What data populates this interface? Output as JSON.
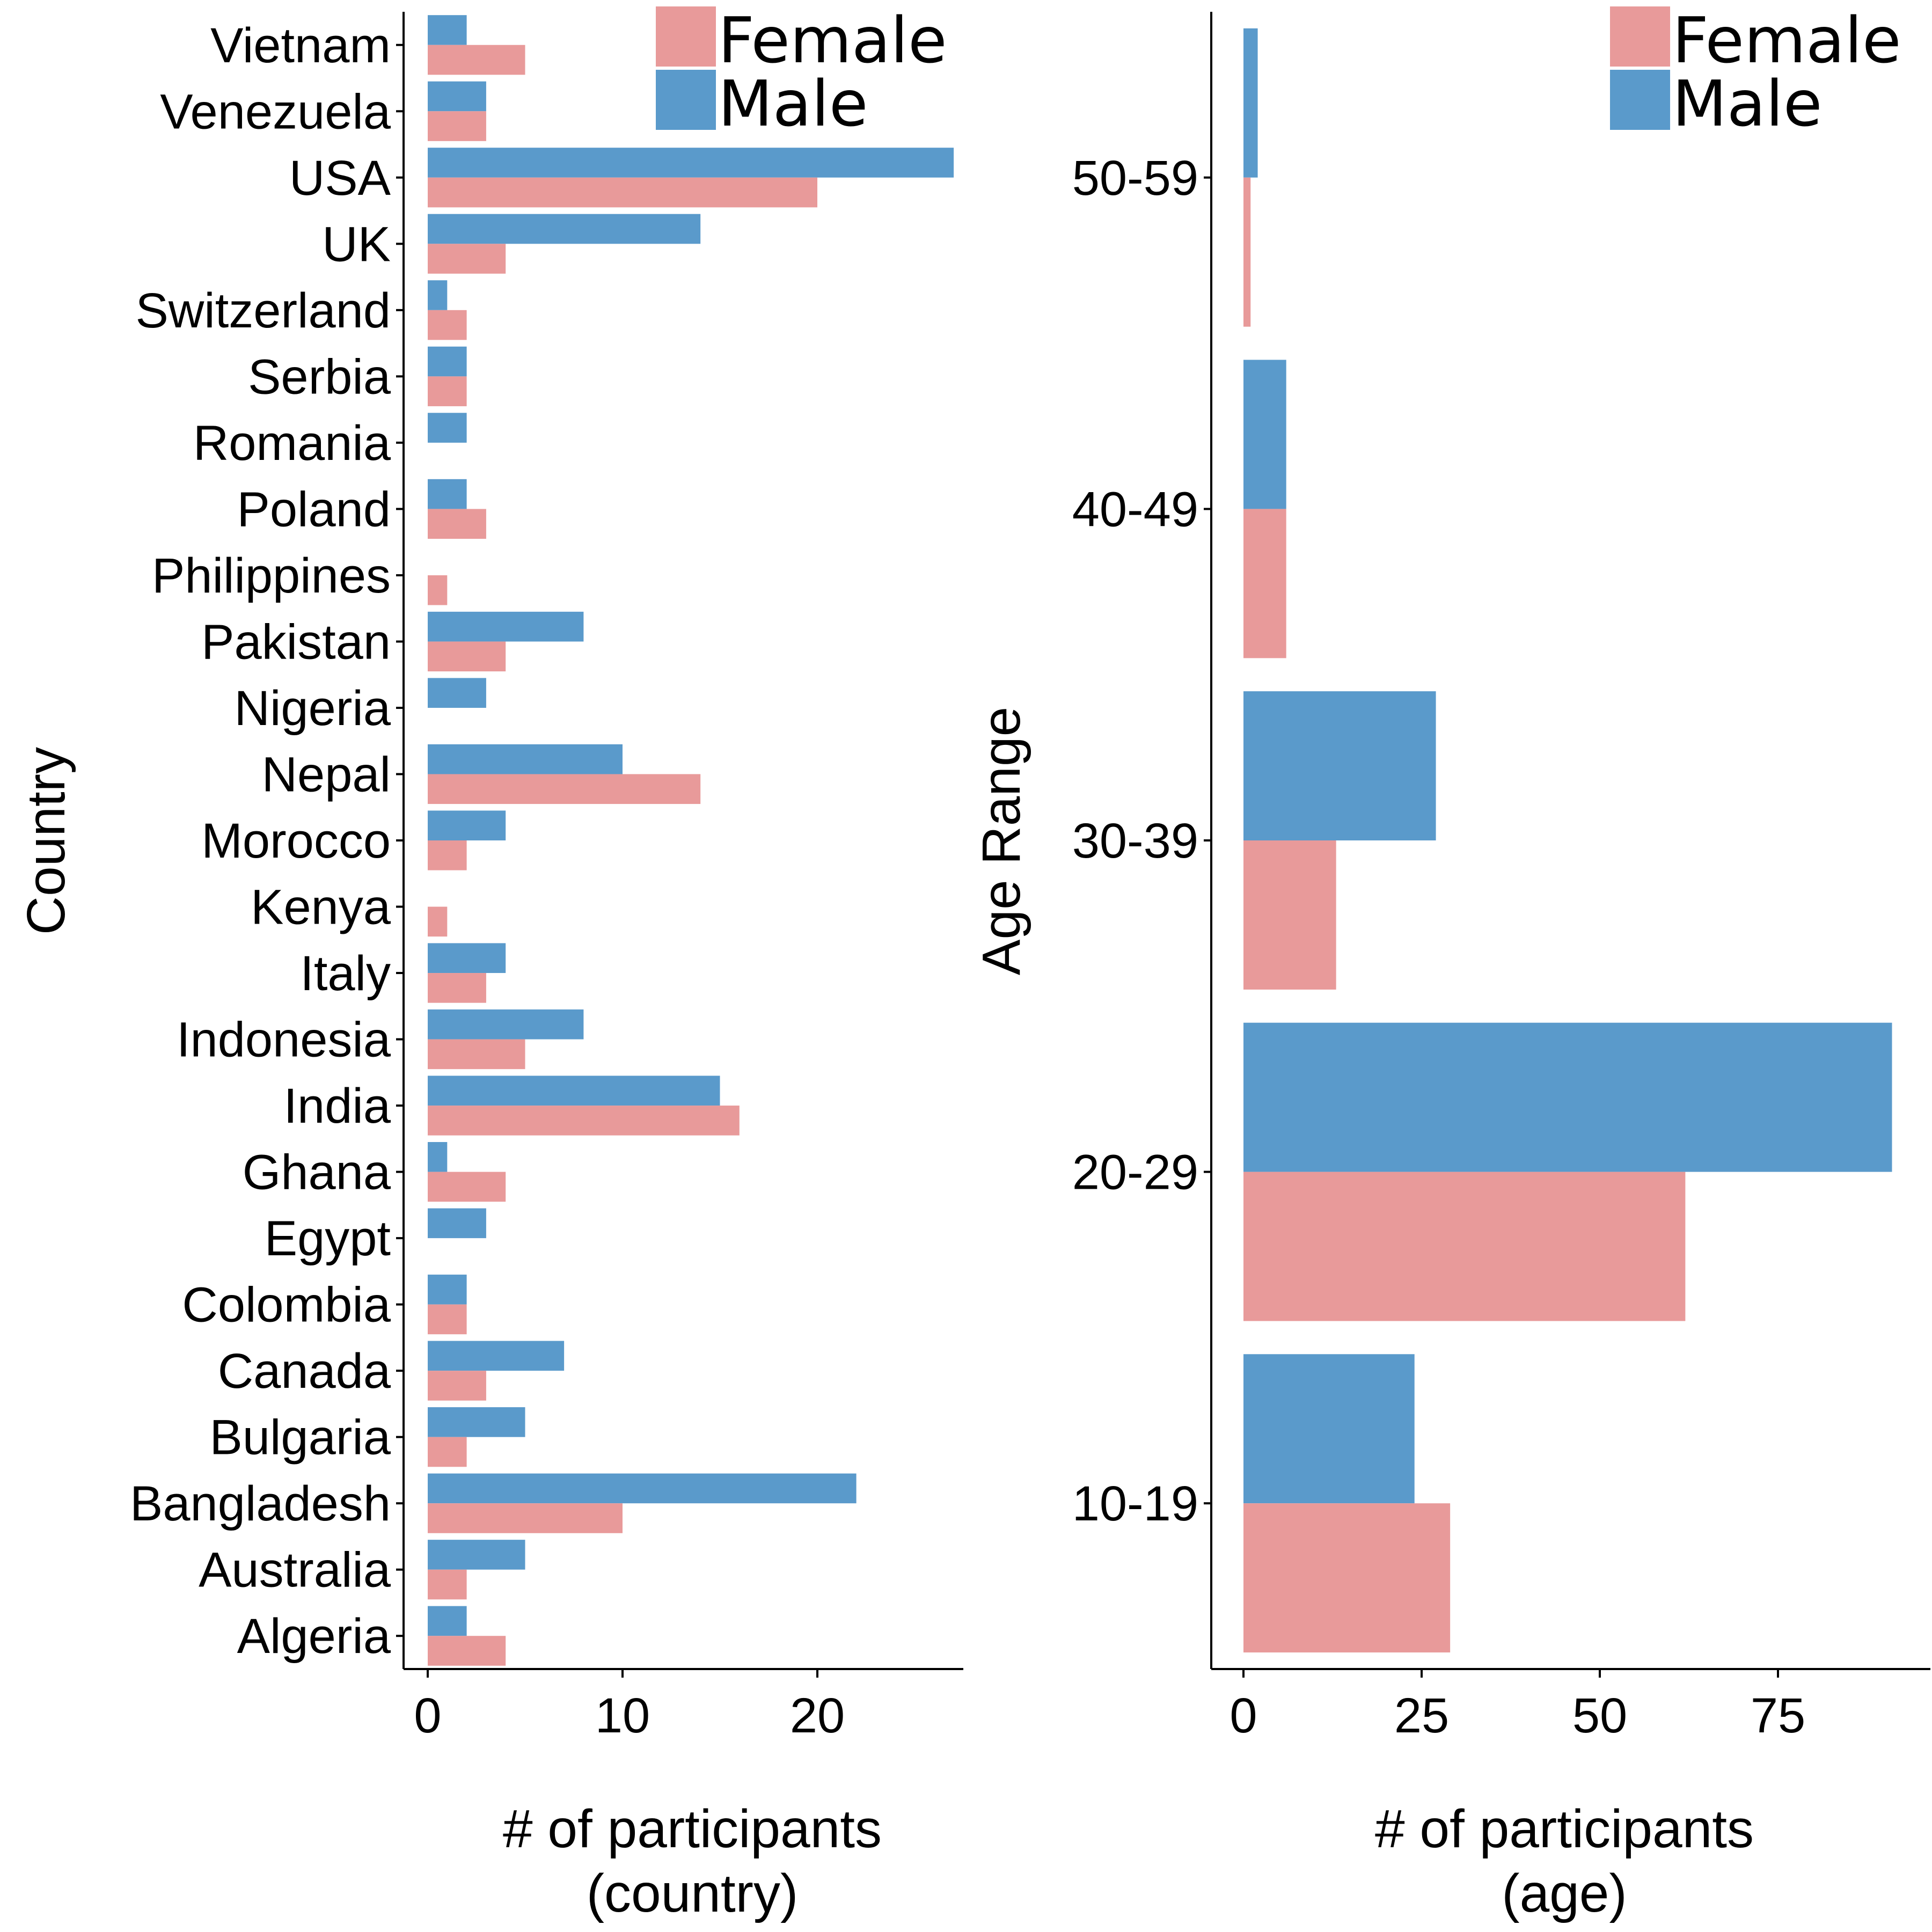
{
  "colors": {
    "female": "#E89A9A",
    "male": "#5A9ACB"
  },
  "chart_data": [
    {
      "type": "bar",
      "orientation": "horizontal",
      "title": "",
      "xlabel_line1": "# of participants",
      "xlabel_line2": "(country)",
      "ylabel": "Country",
      "xlim": [
        0,
        28
      ],
      "xticks": [
        0,
        10,
        20
      ],
      "legend": [
        "Female",
        "Male"
      ],
      "legend_position": "top-right",
      "categories": [
        "Vietnam",
        "Venezuela",
        "USA",
        "UK",
        "Switzerland",
        "Serbia",
        "Romania",
        "Poland",
        "Philippines",
        "Pakistan",
        "Nigeria",
        "Nepal",
        "Morocco",
        "Kenya",
        "Italy",
        "Indonesia",
        "India",
        "Ghana",
        "Egypt",
        "Colombia",
        "Canada",
        "Bulgaria",
        "Bangladesh",
        "Australia",
        "Algeria"
      ],
      "series": [
        {
          "name": "Male",
          "values": [
            2,
            3,
            27,
            14,
            1,
            2,
            2,
            2,
            0,
            8,
            3,
            10,
            4,
            0,
            4,
            8,
            15,
            1,
            3,
            2,
            7,
            5,
            22,
            5,
            2
          ]
        },
        {
          "name": "Female",
          "values": [
            5,
            3,
            20,
            4,
            2,
            2,
            0,
            3,
            1,
            4,
            0,
            14,
            2,
            1,
            3,
            5,
            16,
            4,
            0,
            2,
            3,
            2,
            10,
            2,
            4
          ]
        }
      ]
    },
    {
      "type": "bar",
      "orientation": "horizontal",
      "title": "",
      "xlabel_line1": "# of participants",
      "xlabel_line2": "(age)",
      "ylabel": "Age Range",
      "xlim": [
        0,
        96
      ],
      "xticks": [
        0,
        25,
        50,
        75
      ],
      "legend": [
        "Female",
        "Male"
      ],
      "legend_position": "top-right",
      "categories": [
        "50-59",
        "40-49",
        "30-39",
        "20-29",
        "10-19"
      ],
      "series": [
        {
          "name": "Male",
          "values": [
            2,
            6,
            27,
            91,
            24
          ]
        },
        {
          "name": "Female",
          "values": [
            1,
            6,
            13,
            62,
            29
          ]
        }
      ]
    }
  ]
}
